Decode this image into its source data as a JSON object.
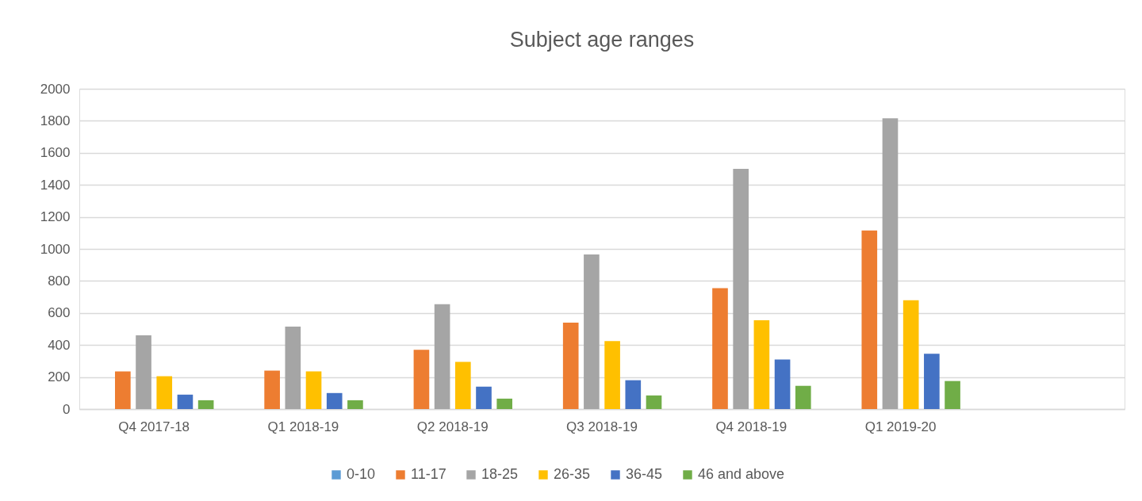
{
  "chart_data": {
    "type": "bar",
    "title": "Subject age ranges",
    "categories": [
      "Q4 2017-18",
      "Q1 2018-19",
      "Q2 2018-19",
      "Q3 2018-19",
      "Q4 2018-19",
      "Q1 2019-20",
      null
    ],
    "series": [
      {
        "name": "0-10",
        "color": "#5b9bd5",
        "values": [
          0,
          0,
          0,
          0,
          0,
          0,
          null
        ]
      },
      {
        "name": "11-17",
        "color": "#ed7d31",
        "values": [
          235,
          240,
          370,
          540,
          755,
          1115,
          null
        ]
      },
      {
        "name": "18-25",
        "color": "#a5a5a5",
        "values": [
          460,
          515,
          655,
          965,
          1500,
          1815,
          null
        ]
      },
      {
        "name": "26-35",
        "color": "#ffc000",
        "values": [
          205,
          235,
          295,
          425,
          555,
          680,
          null
        ]
      },
      {
        "name": "36-45",
        "color": "#4472c4",
        "values": [
          90,
          100,
          140,
          180,
          310,
          345,
          null
        ]
      },
      {
        "name": "46 and above",
        "color": "#70ad47",
        "values": [
          55,
          55,
          65,
          85,
          145,
          175,
          null
        ]
      }
    ],
    "ylim": [
      0,
      2000
    ],
    "yticks": [
      0,
      200,
      400,
      600,
      800,
      1000,
      1200,
      1400,
      1600,
      1800,
      2000
    ],
    "grid": "y",
    "legend": "bottom"
  }
}
